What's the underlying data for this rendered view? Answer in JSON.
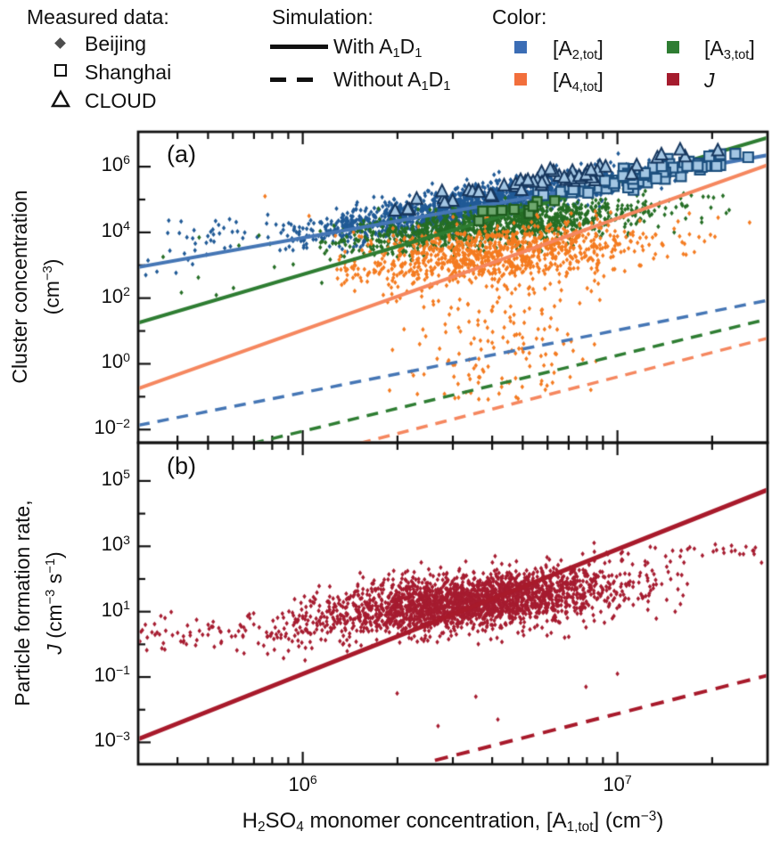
{
  "legend": {
    "measured": {
      "header": "Measured data:",
      "items": [
        {
          "marker": "diamond",
          "label": "Beijing"
        },
        {
          "marker": "square-open",
          "label": "Shanghai"
        },
        {
          "marker": "triangle-open",
          "label": "CLOUD"
        }
      ]
    },
    "simulation": {
      "header": "Simulation:",
      "items": [
        {
          "line": "solid",
          "label_parts": [
            {
              "t": "With A"
            },
            {
              "t": "1",
              "s": "sub"
            },
            {
              "t": "D"
            },
            {
              "t": "1",
              "s": "sub"
            }
          ]
        },
        {
          "line": "dashed",
          "label_parts": [
            {
              "t": "Without A"
            },
            {
              "t": "1",
              "s": "sub"
            },
            {
              "t": "D"
            },
            {
              "t": "1",
              "s": "sub"
            }
          ]
        }
      ]
    },
    "color": {
      "header": "Color:",
      "items": [
        {
          "swatch": "#3b6db5",
          "label_parts": [
            {
              "t": "[A"
            },
            {
              "t": "2,tot",
              "s": "sub"
            },
            {
              "t": "]"
            }
          ]
        },
        {
          "swatch": "#2e7d32",
          "label_parts": [
            {
              "t": "[A"
            },
            {
              "t": "3,tot",
              "s": "sub"
            },
            {
              "t": "]"
            }
          ]
        },
        {
          "swatch": "#f26f3c",
          "label_parts": [
            {
              "t": "[A"
            },
            {
              "t": "4,tot",
              "s": "sub"
            },
            {
              "t": "]"
            }
          ]
        },
        {
          "swatch": "#a51c2e",
          "label_parts": [
            {
              "t": "J",
              "s": "i"
            }
          ]
        }
      ]
    }
  },
  "chart_data": {
    "type": "scatter",
    "x_axis": {
      "label_parts": [
        {
          "t": "H"
        },
        {
          "t": "2",
          "s": "sub"
        },
        {
          "t": "SO"
        },
        {
          "t": "4",
          "s": "sub"
        },
        {
          "t": " monomer concentration, [A"
        },
        {
          "t": "1,tot",
          "s": "sub"
        },
        {
          "t": "] (cm"
        },
        {
          "t": "−3",
          "s": "sup"
        },
        {
          "t": ")"
        }
      ],
      "log_range": [
        5.477,
        7.477
      ],
      "major_ticks": [
        6,
        7
      ],
      "minor_ticks": [
        5.602,
        5.699,
        5.778,
        5.845,
        5.903,
        5.954,
        6.301,
        6.477,
        6.602,
        6.699,
        6.778,
        6.845,
        6.903,
        6.954,
        7.301
      ],
      "tick_labels": [
        {
          "log": 6,
          "parts": [
            {
              "t": "10"
            },
            {
              "t": "6",
              "s": "sup"
            }
          ]
        },
        {
          "log": 7,
          "parts": [
            {
              "t": "10"
            },
            {
              "t": "7",
              "s": "sup"
            }
          ]
        }
      ]
    },
    "panels": [
      {
        "letter": "(a)",
        "ylabel_line1": "Cluster concentration",
        "ylabel_line2_parts": [
          {
            "t": "(cm"
          },
          {
            "t": "−3",
            "s": "sup"
          },
          {
            "t": ")"
          }
        ],
        "y_log_range": [
          -2.4,
          7.06
        ],
        "y_major_ticks": [
          6,
          4,
          2,
          0,
          -2
        ],
        "y_minor_ticks": [
          5,
          3,
          1,
          -1
        ],
        "y_tick_labels": [
          {
            "log": 6,
            "parts": [
              {
                "t": "10"
              },
              {
                "t": "6",
                "s": "sup"
              }
            ]
          },
          {
            "log": 4,
            "parts": [
              {
                "t": "10"
              },
              {
                "t": "4",
                "s": "sup"
              }
            ]
          },
          {
            "log": 2,
            "parts": [
              {
                "t": "10"
              },
              {
                "t": "2",
                "s": "sup"
              }
            ]
          },
          {
            "log": 0,
            "parts": [
              {
                "t": "10"
              },
              {
                "t": "0",
                "s": "sup"
              }
            ]
          },
          {
            "log": -2,
            "parts": [
              {
                "t": "10"
              },
              {
                "t": "−2",
                "s": "sup"
              }
            ]
          }
        ],
        "lines": [
          {
            "name": "A2-with-A1D1",
            "color": "#4576b5",
            "dash": null,
            "width": 4,
            "points": [
              [
                5.477,
                2.94
              ],
              [
                7.477,
                6.35
              ]
            ]
          },
          {
            "name": "A3-with-A1D1",
            "color": "#2e7d32",
            "dash": null,
            "width": 4,
            "points": [
              [
                5.477,
                1.25
              ],
              [
                7.477,
                6.88
              ]
            ]
          },
          {
            "name": "A4-with-A1D1",
            "color": "#f5875f",
            "dash": null,
            "width": 4,
            "points": [
              [
                5.477,
                -0.75
              ],
              [
                7.477,
                6.05
              ]
            ]
          },
          {
            "name": "A2-without-A1D1",
            "color": "#4576b5",
            "dash": [
              13,
              9
            ],
            "width": 3.5,
            "points": [
              [
                5.477,
                -1.87
              ],
              [
                7.477,
                1.93
              ]
            ]
          },
          {
            "name": "A3-without-A1D1",
            "color": "#2e7d32",
            "dash": [
              13,
              9
            ],
            "width": 3.5,
            "points": [
              [
                5.84,
                -2.42
              ],
              [
                7.477,
                1.36
              ]
            ]
          },
          {
            "name": "A4-without-A1D1",
            "color": "#f5875f",
            "dash": [
              13,
              9
            ],
            "width": 3.5,
            "points": [
              [
                6.18,
                -2.42
              ],
              [
                7.477,
                0.78
              ]
            ]
          }
        ],
        "scatter": [
          {
            "name": "beijing-A2",
            "marker": "diamond",
            "color": "#205a96",
            "size": 2.2,
            "seed": 11,
            "n": 1600,
            "x": {
              "dist": "normal",
              "mu": 6.52,
              "sigma": 0.27,
              "min": 5.92,
              "max": 7.42
            },
            "y": {
              "base": "line",
              "line": 0,
              "offset": 0.1,
              "sigma": 0.27,
              "min": 3.2,
              "max": 6.6
            }
          },
          {
            "name": "beijing-A2-left",
            "marker": "diamond",
            "color": "#205a96",
            "size": 2.2,
            "seed": 12,
            "n": 48,
            "x": {
              "dist": "uniform",
              "min": 5.5,
              "max": 6.02
            },
            "y": {
              "base": "line",
              "line": 0,
              "offset": 0.55,
              "sigma": 0.38,
              "min": 2.2,
              "max": 4.6
            }
          },
          {
            "name": "beijing-A3",
            "marker": "diamond",
            "color": "#256e25",
            "size": 2.2,
            "seed": 13,
            "n": 1150,
            "x": {
              "dist": "normal",
              "mu": 6.6,
              "sigma": 0.26,
              "min": 6.05,
              "max": 7.45
            },
            "y": {
              "base": "trend",
              "x0": 6.6,
              "y0": 4.2,
              "slope": 0.95,
              "offset": 0,
              "sigma": 0.3,
              "min": 2.6,
              "max": 5.35
            }
          },
          {
            "name": "beijing-A3-left",
            "marker": "diamond",
            "color": "#256e25",
            "size": 2.2,
            "seed": 14,
            "n": 14,
            "x": {
              "dist": "uniform",
              "min": 5.52,
              "max": 6.1
            },
            "y": {
              "base": "trend",
              "x0": 6.0,
              "y0": 3.2,
              "slope": 0.8,
              "offset": 0,
              "sigma": 0.55,
              "min": 1.8,
              "max": 4.4
            }
          },
          {
            "name": "beijing-A4",
            "marker": "diamond",
            "color": "#f47b20",
            "size": 2.2,
            "seed": 15,
            "n": 950,
            "x": {
              "dist": "normal",
              "mu": 6.62,
              "sigma": 0.24,
              "min": 6.1,
              "max": 7.45
            },
            "y": {
              "base": "trend",
              "x0": 6.62,
              "y0": 3.35,
              "slope": 0.85,
              "offset": 0,
              "sigma": 0.42,
              "min": 1.0,
              "max": 4.75
            }
          },
          {
            "name": "beijing-A4-tail",
            "marker": "diamond",
            "color": "#f47b20",
            "size": 2.2,
            "seed": 16,
            "n": 170,
            "x": {
              "dist": "normal",
              "mu": 6.62,
              "sigma": 0.17,
              "min": 6.25,
              "max": 7.1
            },
            "y": {
              "base": "uniform",
              "min": -1.1,
              "max": 2.6
            }
          },
          {
            "name": "beijing-A4-outliers",
            "marker": "diamond",
            "color": "#f47b20",
            "size": 2.2,
            "seed": 20,
            "n": 0,
            "x": {
              "dist": "uniform",
              "min": 5.9,
              "max": 6.0
            },
            "y": {
              "base": "uniform",
              "min": 5.0,
              "max": 5.2
            },
            "points": [
              [
                5.88,
                5.1
              ],
              [
                6.02,
                4.5
              ],
              [
                7.32,
                4.45
              ],
              [
                7.42,
                4.3
              ]
            ]
          },
          {
            "name": "shanghai-A2",
            "marker": "square",
            "color": "#1c4f7e",
            "fill": "#a3c6e3",
            "size": 11,
            "seed": 17,
            "n": 80,
            "x": {
              "dist": "normal",
              "mu": 7.07,
              "sigma": 0.16,
              "min": 6.6,
              "max": 7.42
            },
            "y": {
              "base": "line",
              "line": 0,
              "offset": 0.08,
              "sigma": 0.17,
              "min": 4.4,
              "max": 6.4
            }
          },
          {
            "name": "shanghai-A3",
            "marker": "square",
            "color": "#1e5c1e",
            "fill": "#6fa86f",
            "size": 10,
            "seed": 18,
            "n": 10,
            "x": {
              "dist": "normal",
              "mu": 6.73,
              "sigma": 0.09,
              "min": 6.55,
              "max": 6.95
            },
            "y": {
              "base": "trend",
              "x0": 6.73,
              "y0": 4.75,
              "slope": 1.3,
              "offset": 0,
              "sigma": 0.13,
              "min": 4.2,
              "max": 5.2
            }
          },
          {
            "name": "cloud-A2",
            "marker": "triangle",
            "color": "#17375e",
            "fill": "#a3c6e3",
            "size": 13,
            "seed": 19,
            "n": 52,
            "x": {
              "dist": "normal",
              "mu": 6.78,
              "sigma": 0.3,
              "min": 6.22,
              "max": 7.33
            },
            "y": {
              "base": "line",
              "line": 0,
              "offset": 0.42,
              "sigma": 0.13,
              "min": 4.6,
              "max": 6.6
            }
          }
        ]
      },
      {
        "letter": "(b)",
        "ylabel_line1": "Particle formation rate,",
        "ylabel_line2_parts": [
          {
            "t": "J",
            "s": "i"
          },
          {
            "t": " (cm"
          },
          {
            "t": "−3",
            "s": "sup"
          },
          {
            "t": " s"
          },
          {
            "t": "−1",
            "s": "sup"
          },
          {
            "t": ")"
          }
        ],
        "y_log_range": [
          -3.67,
          6.17
        ],
        "y_major_ticks": [
          5,
          3,
          1,
          -1,
          -3
        ],
        "y_minor_ticks": [
          4,
          2,
          0,
          -2
        ],
        "y_tick_labels": [
          {
            "log": 5,
            "parts": [
              {
                "t": "10"
              },
              {
                "t": "5",
                "s": "sup"
              }
            ]
          },
          {
            "log": 3,
            "parts": [
              {
                "t": "10"
              },
              {
                "t": "3",
                "s": "sup"
              }
            ]
          },
          {
            "log": 1,
            "parts": [
              {
                "t": "10"
              },
              {
                "t": "1",
                "s": "sup"
              }
            ]
          },
          {
            "log": -1,
            "parts": [
              {
                "t": "10"
              },
              {
                "t": "−1",
                "s": "sup"
              }
            ]
          },
          {
            "log": -3,
            "parts": [
              {
                "t": "10"
              },
              {
                "t": "−3",
                "s": "sup"
              }
            ]
          }
        ],
        "lines": [
          {
            "name": "J-with-A1D1",
            "color": "#a81a2b",
            "dash": null,
            "width": 5,
            "points": [
              [
                5.477,
                -2.9
              ],
              [
                7.477,
                4.73
              ]
            ]
          },
          {
            "name": "J-without-A1D1",
            "color": "#a81a2b",
            "dash": [
              15,
              10
            ],
            "width": 4,
            "points": [
              [
                6.42,
                -3.55
              ],
              [
                7.477,
                -0.95
              ]
            ]
          }
        ],
        "scatter": [
          {
            "name": "beijing-J",
            "marker": "diamond",
            "color": "#a61c30",
            "size": 2.2,
            "seed": 31,
            "n": 2350,
            "x": {
              "dist": "normal",
              "mu": 6.53,
              "sigma": 0.24,
              "min": 5.75,
              "max": 7.32
            },
            "y": {
              "base": "trend",
              "x0": 6.5,
              "y0": 1.3,
              "slope": 0.8,
              "offset": 0,
              "sigma": 0.42,
              "min": -1.9,
              "max": 3.1
            }
          },
          {
            "name": "beijing-J-left",
            "marker": "diamond",
            "color": "#a61c30",
            "size": 2.2,
            "seed": 32,
            "n": 120,
            "x": {
              "dist": "uniform",
              "min": 5.48,
              "max": 6.15
            },
            "y": {
              "base": "trend",
              "x0": 6.0,
              "y0": 0.45,
              "slope": 0.25,
              "offset": 0,
              "sigma": 0.3,
              "min": -0.6,
              "max": 1.3
            }
          },
          {
            "name": "beijing-J-top-right",
            "marker": "diamond",
            "color": "#a61c30",
            "size": 2.2,
            "seed": 33,
            "n": 40,
            "x": {
              "dist": "uniform",
              "min": 6.88,
              "max": 7.46
            },
            "y": {
              "base": "trend",
              "x0": 7.1,
              "y0": 2.75,
              "slope": 0.35,
              "offset": 0,
              "sigma": 0.17,
              "min": 2.2,
              "max": 3.3
            }
          },
          {
            "name": "beijing-J-low-outliers",
            "marker": "diamond",
            "color": "#a61c30",
            "size": 2.2,
            "seed": 34,
            "n": 0,
            "x": {
              "dist": "uniform",
              "min": 6.3,
              "max": 7.0
            },
            "y": {
              "base": "uniform",
              "min": -2.6,
              "max": -1.0
            },
            "points": [
              [
                6.43,
                -2.5
              ],
              [
                6.62,
                -2.3
              ],
              [
                6.55,
                -1.6
              ],
              [
                6.9,
                -1.3
              ],
              [
                6.3,
                -1.5
              ],
              [
                7.0,
                -0.9
              ]
            ]
          }
        ]
      }
    ]
  }
}
